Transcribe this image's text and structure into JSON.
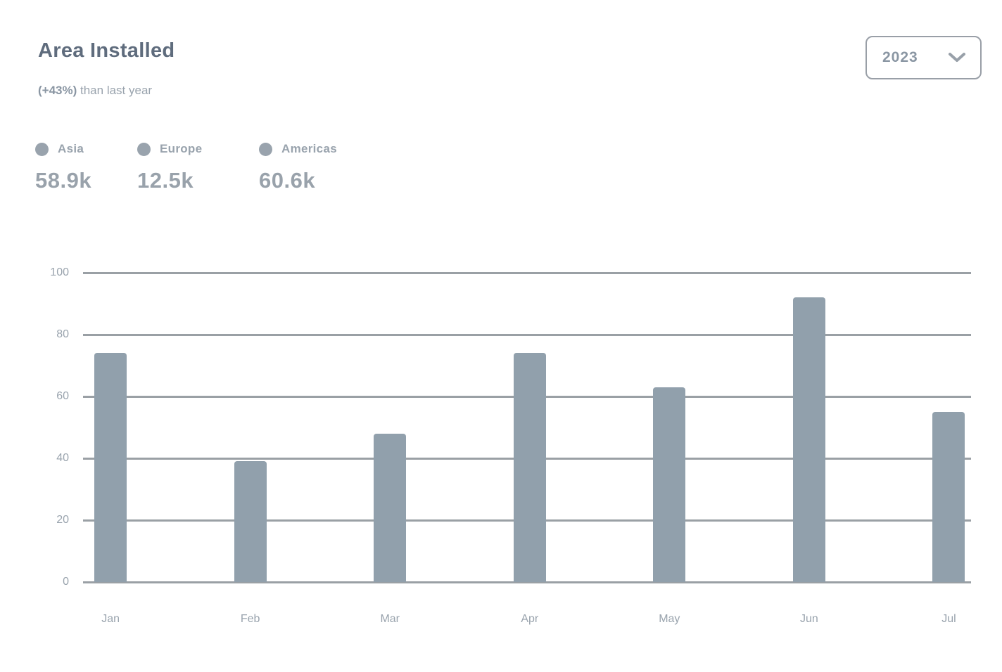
{
  "header": {
    "title": "Area Installed",
    "subtitle_percent": "(+43%)",
    "subtitle_rest": " than last year",
    "year_select": {
      "value": "2023",
      "icon": "chevron-down-icon"
    }
  },
  "legend": [
    {
      "label": "Asia",
      "value": "58.9k",
      "dot_color": "#99a3ad"
    },
    {
      "label": "Europe",
      "value": "12.5k",
      "dot_color": "#99a3ad"
    },
    {
      "label": "Americas",
      "value": "60.6k",
      "dot_color": "#99a3ad"
    }
  ],
  "chart_data": {
    "type": "bar",
    "title": "Area Installed",
    "subtitle": "(+43%) than last year",
    "categories": [
      "Jan",
      "Feb",
      "Mar",
      "Apr",
      "May",
      "Jun",
      "Jul"
    ],
    "series": [
      {
        "name": "Area installed",
        "values": [
          74,
          39,
          48,
          74,
          63,
          92,
          55
        ]
      }
    ],
    "legend_entries": [
      "Asia",
      "Europe",
      "Americas"
    ],
    "legend_values": [
      "58.9k",
      "12.5k",
      "60.6k"
    ],
    "legend_position": "top-left",
    "xlabel": "",
    "ylabel": "",
    "ylim": [
      0,
      100
    ],
    "yticks": [
      0,
      20,
      40,
      60,
      80,
      100
    ],
    "grid": "horizontal",
    "bar_color": "#91a0ac"
  },
  "colors": {
    "bg": "#ffffff",
    "title": "#5f6c7d",
    "subtle": "#8a96a3",
    "muted": "#99a3ad",
    "value": "#99a2ab",
    "bar": "#91a0ac",
    "grid": "#9aa0a5",
    "border": "#999fa7"
  }
}
